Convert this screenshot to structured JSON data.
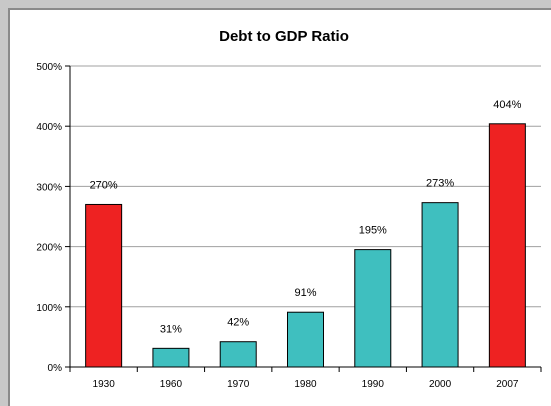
{
  "chart_data": {
    "type": "bar",
    "title": "Debt to GDP Ratio",
    "categories": [
      "1930",
      "1960",
      "1970",
      "1980",
      "1990",
      "2000",
      "2007"
    ],
    "values": [
      270,
      31,
      42,
      91,
      195,
      273,
      404
    ],
    "data_labels": [
      "270%",
      "31%",
      "42%",
      "91%",
      "195%",
      "273%",
      "404%"
    ],
    "bar_colors": [
      "#ee2222",
      "#3fbfbf",
      "#3fbfbf",
      "#3fbfbf",
      "#3fbfbf",
      "#3fbfbf",
      "#ee2222"
    ],
    "ylim": [
      0,
      500
    ],
    "yticks": [
      0,
      100,
      200,
      300,
      400,
      500
    ],
    "ytick_labels": [
      "0%",
      "100%",
      "200%",
      "300%",
      "400%",
      "500%"
    ],
    "grid": true,
    "xlabel": "",
    "ylabel": ""
  }
}
